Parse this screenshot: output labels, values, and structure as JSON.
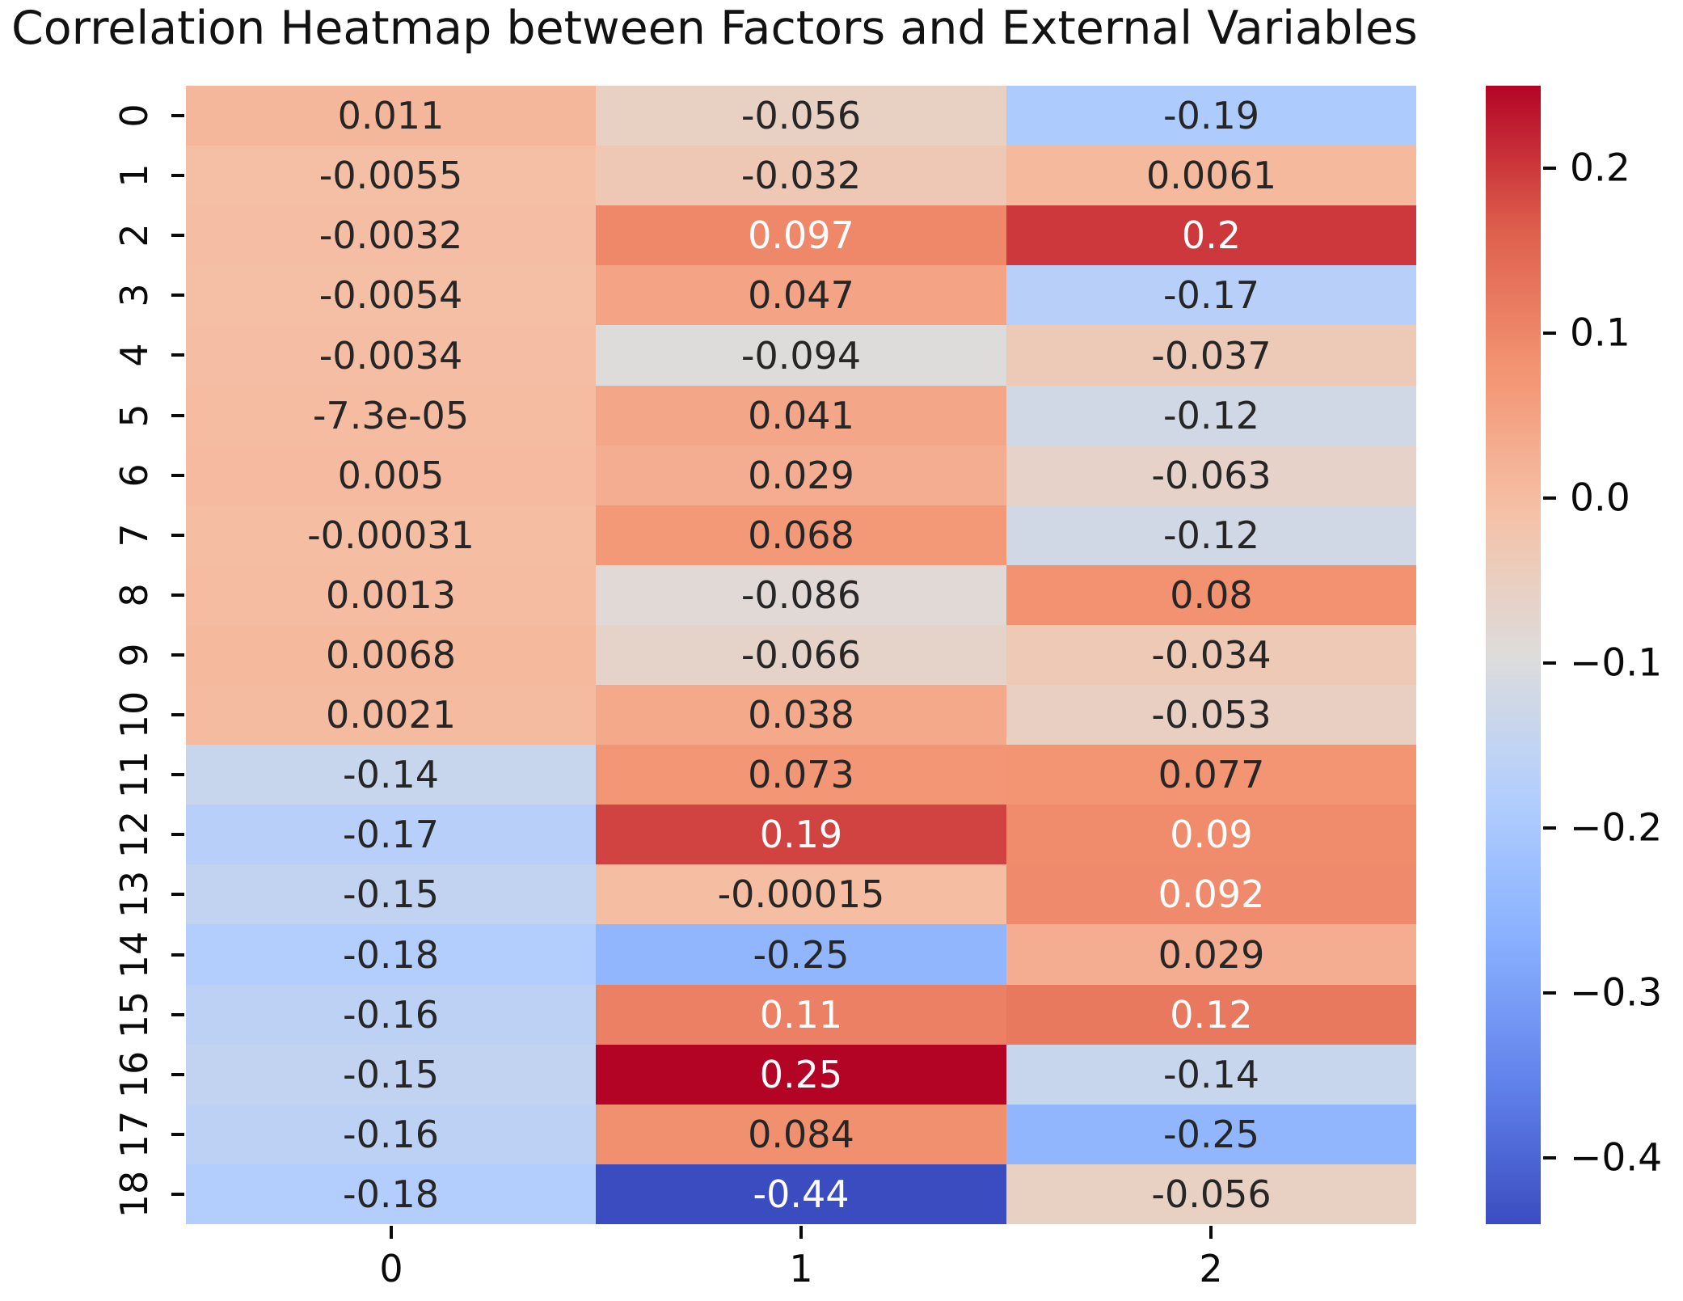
{
  "chart_data": {
    "type": "heatmap",
    "title": "Correlation Heatmap between Factors and External Variables",
    "x_tick_labels": [
      "0",
      "1",
      "2"
    ],
    "y_tick_labels": [
      "0",
      "1",
      "2",
      "3",
      "4",
      "5",
      "6",
      "7",
      "8",
      "9",
      "10",
      "11",
      "12",
      "13",
      "14",
      "15",
      "16",
      "17",
      "18"
    ],
    "values": [
      [
        0.011,
        -0.056,
        -0.19
      ],
      [
        -0.0055,
        -0.032,
        0.0061
      ],
      [
        -0.0032,
        0.097,
        0.2
      ],
      [
        -0.0054,
        0.047,
        -0.17
      ],
      [
        -0.0034,
        -0.094,
        -0.037
      ],
      [
        -7.3e-05,
        0.041,
        -0.12
      ],
      [
        0.005,
        0.029,
        -0.063
      ],
      [
        -0.00031,
        0.068,
        -0.12
      ],
      [
        0.0013,
        -0.086,
        0.08
      ],
      [
        0.0068,
        -0.066,
        -0.034
      ],
      [
        0.0021,
        0.038,
        -0.053
      ],
      [
        -0.14,
        0.073,
        0.077
      ],
      [
        -0.17,
        0.19,
        0.09
      ],
      [
        -0.15,
        -0.00015,
        0.092
      ],
      [
        -0.18,
        -0.25,
        0.029
      ],
      [
        -0.16,
        0.11,
        0.12
      ],
      [
        -0.15,
        0.25,
        -0.14
      ],
      [
        -0.16,
        0.084,
        -0.25
      ],
      [
        -0.18,
        -0.44,
        -0.056
      ]
    ],
    "labels": [
      [
        "0.011",
        "-0.056",
        "-0.19"
      ],
      [
        "-0.0055",
        "-0.032",
        "0.0061"
      ],
      [
        "-0.0032",
        "0.097",
        "0.2"
      ],
      [
        "-0.0054",
        "0.047",
        "-0.17"
      ],
      [
        "-0.0034",
        "-0.094",
        "-0.037"
      ],
      [
        "-7.3e-05",
        "0.041",
        "-0.12"
      ],
      [
        "0.005",
        "0.029",
        "-0.063"
      ],
      [
        "-0.00031",
        "0.068",
        "-0.12"
      ],
      [
        "0.0013",
        "-0.086",
        "0.08"
      ],
      [
        "0.0068",
        "-0.066",
        "-0.034"
      ],
      [
        "0.0021",
        "0.038",
        "-0.053"
      ],
      [
        "-0.14",
        "0.073",
        "0.077"
      ],
      [
        "-0.17",
        "0.19",
        "0.09"
      ],
      [
        "-0.15",
        "-0.00015",
        "0.092"
      ],
      [
        "-0.18",
        "-0.25",
        "0.029"
      ],
      [
        "-0.16",
        "0.11",
        "0.12"
      ],
      [
        "-0.15",
        "0.25",
        "-0.14"
      ],
      [
        "-0.16",
        "0.084",
        "-0.25"
      ],
      [
        "-0.18",
        "-0.44",
        "-0.056"
      ]
    ],
    "white_text_cells": [
      [
        2,
        1
      ],
      [
        2,
        2
      ],
      [
        12,
        1
      ],
      [
        12,
        2
      ],
      [
        13,
        2
      ],
      [
        15,
        1
      ],
      [
        15,
        2
      ],
      [
        16,
        1
      ],
      [
        18,
        1
      ]
    ],
    "vmin": -0.44,
    "vmax": 0.25,
    "colormap": {
      "name": "coolwarm",
      "anchor_colors": [
        "#3b4cc0",
        "#6182eb",
        "#88b0fe",
        "#b2cefd",
        "#dddcdb",
        "#f5c1a7",
        "#f39472",
        "#dd5e4c",
        "#b40426"
      ]
    },
    "annotation_colors": {
      "dark": "#262626",
      "light": "#ffffff"
    },
    "axis_color": "#0a0a0a",
    "colorbar": {
      "tick_labels": [
        "0.2",
        "0.1",
        "0.0",
        "−0.1",
        "−0.2",
        "−0.3",
        "−0.4"
      ],
      "tick_values": [
        0.2,
        0.1,
        0.0,
        -0.1,
        -0.2,
        -0.3,
        -0.4
      ],
      "position": "right"
    },
    "grid": false,
    "legend": false
  }
}
